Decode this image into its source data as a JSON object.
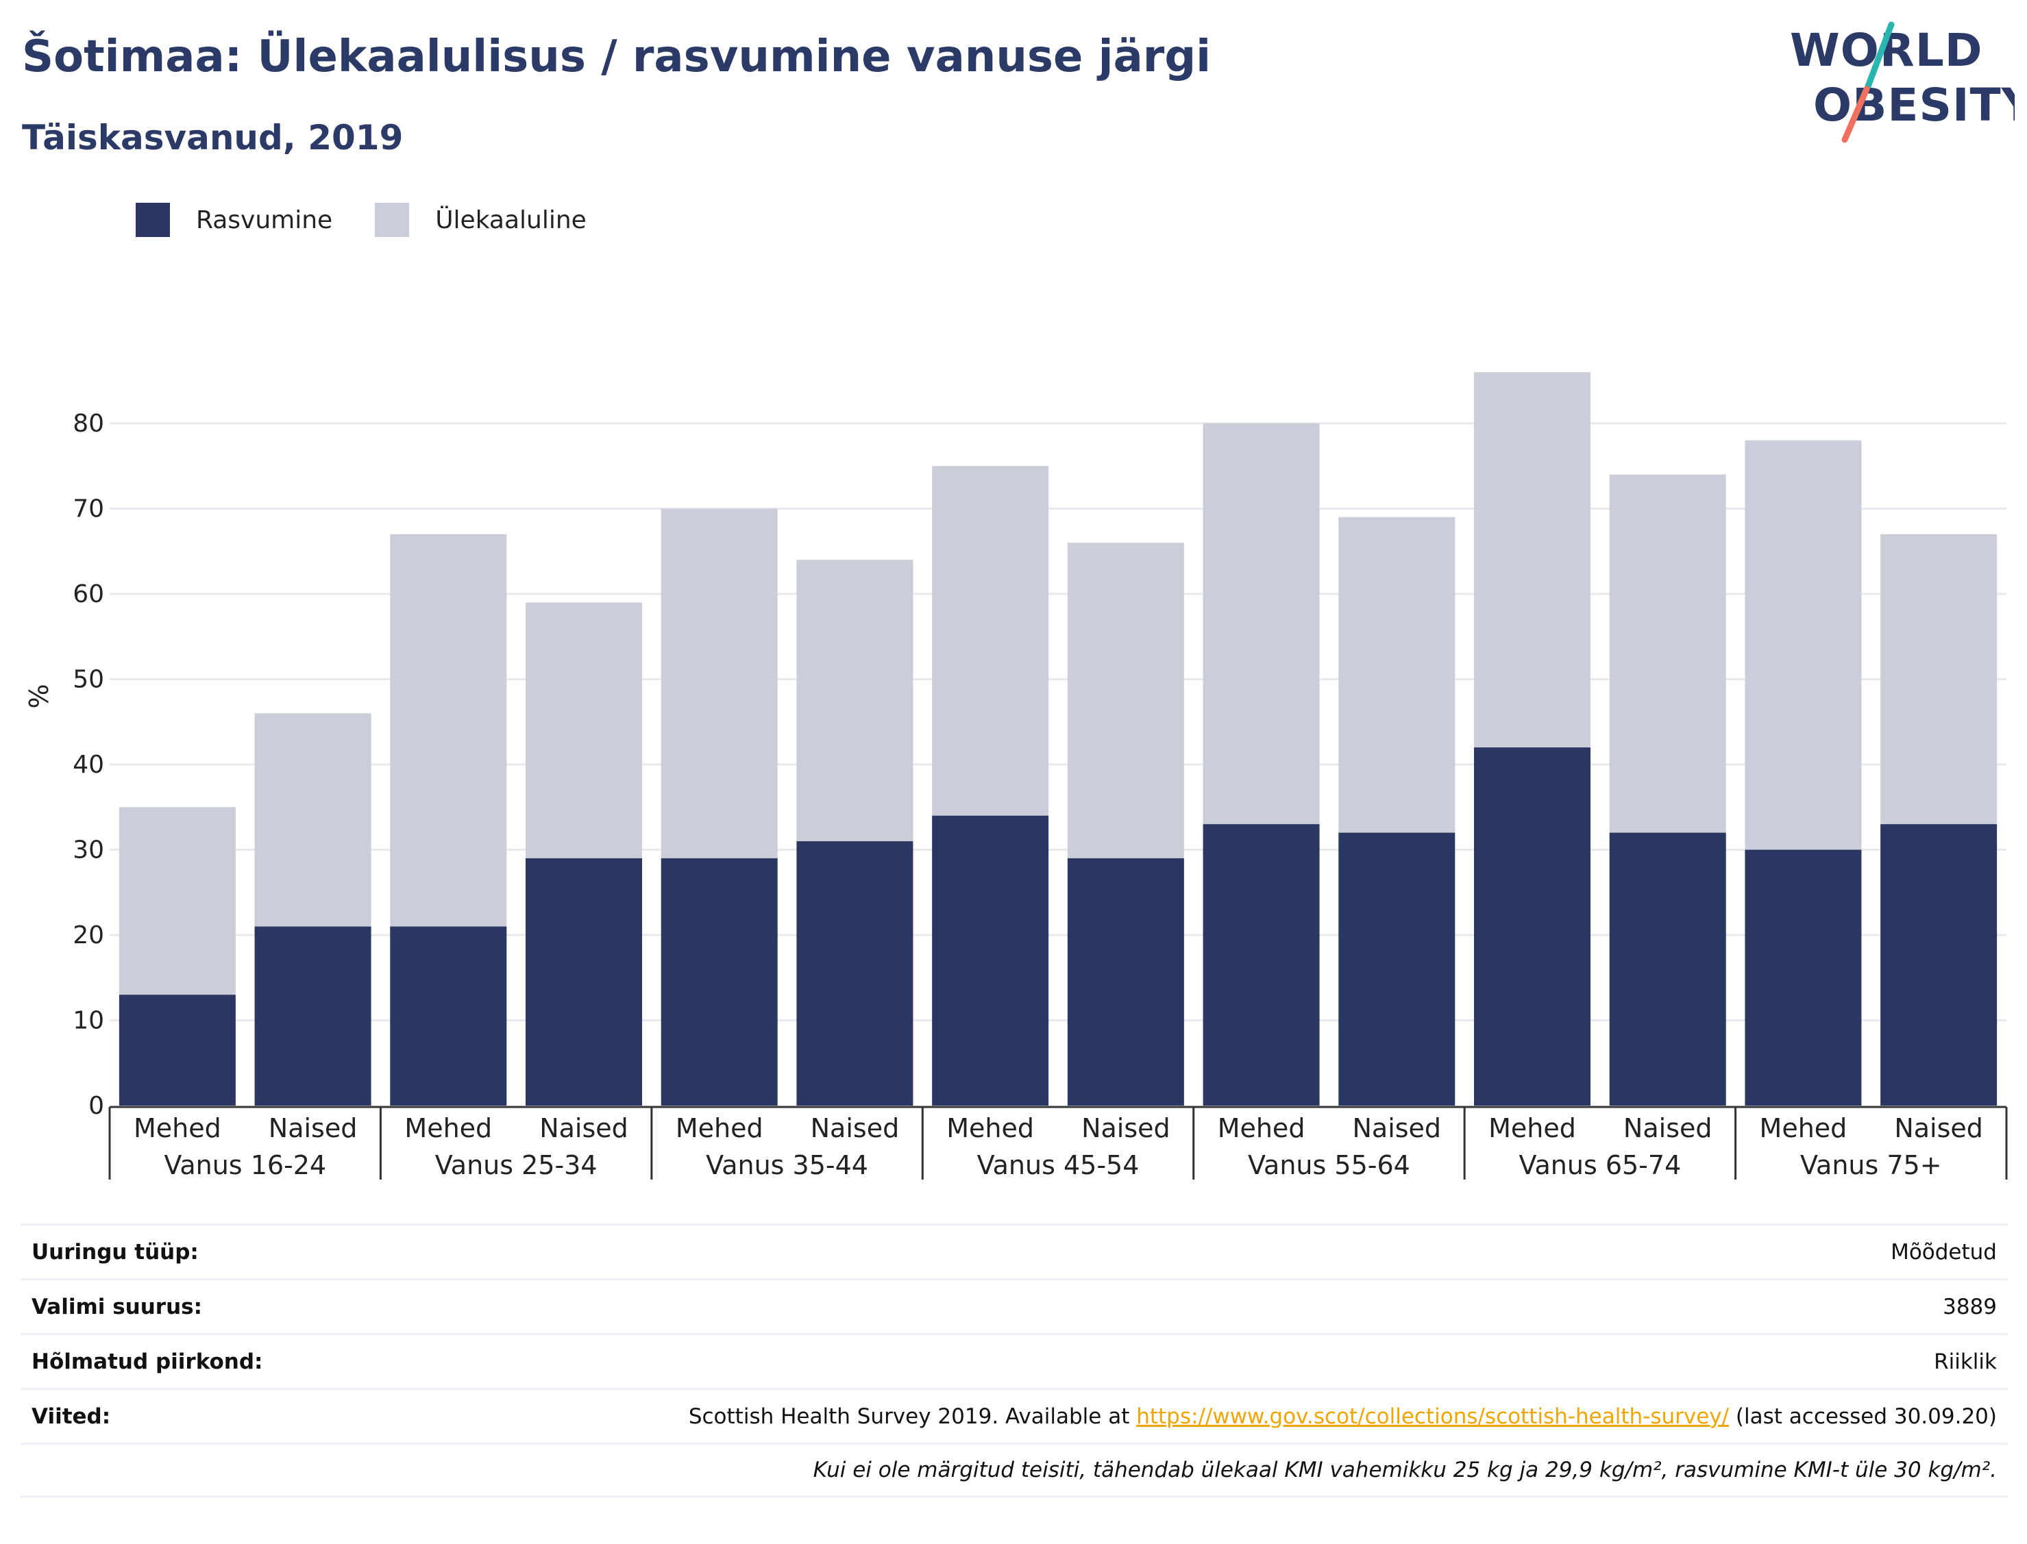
{
  "header": {
    "title": "Šotimaa: Ülekaalulisus / rasvumine vanuse järgi",
    "subtitle": "Täiskasvanud, 2019",
    "logo_line1": "WORLD",
    "logo_line2": "OBESITY"
  },
  "colors": {
    "obesity": "#2b3763",
    "overweight": "#cbcdd8",
    "title": "#2b3a67",
    "link": "#f0a500",
    "logo_teal": "#2bb5b0",
    "logo_coral": "#f07060"
  },
  "chart_data": {
    "type": "bar",
    "stacked": true,
    "ylabel": "%",
    "ylim": [
      0,
      90
    ],
    "yticks": [
      0,
      10,
      20,
      30,
      40,
      50,
      60,
      70,
      80
    ],
    "grid": true,
    "legend_position": "top-left",
    "categories": [
      "Mehed",
      "Naised",
      "Mehed",
      "Naised",
      "Mehed",
      "Naised",
      "Mehed",
      "Naised",
      "Mehed",
      "Naised",
      "Mehed",
      "Naised",
      "Mehed",
      "Naised"
    ],
    "groups": [
      "Vanus 16-24",
      "Vanus 25-34",
      "Vanus 35-44",
      "Vanus 45-54",
      "Vanus 55-64",
      "Vanus 65-74",
      "Vanus 75+"
    ],
    "series": [
      {
        "name": "Rasvumine",
        "values": [
          13,
          21,
          21,
          29,
          29,
          31,
          34,
          29,
          33,
          32,
          42,
          32,
          30,
          33
        ]
      },
      {
        "name": "Ülekaaluline",
        "values": [
          22,
          25,
          46,
          30,
          41,
          33,
          41,
          37,
          47,
          37,
          44,
          42,
          48,
          34
        ]
      }
    ]
  },
  "info": {
    "survey_type_label": "Uuringu tüüp:",
    "survey_type_value": "Mõõdetud",
    "sample_size_label": "Valimi suurus:",
    "sample_size_value": "3889",
    "region_label": "Hõlmatud piirkond:",
    "region_value": "Riiklik",
    "references_label": "Viited:",
    "references_prefix": "Scottish Health Survey 2019. Available at ",
    "references_link": "https://www.gov.scot/collections/scottish-health-survey/",
    "references_suffix": " (last accessed 30.09.20)",
    "note": "Kui ei ole märgitud teisiti, tähendab ülekaal KMI vahemikku 25 kg ja 29,9 kg/m², rasvumine KMI-t üle 30 kg/m²."
  }
}
